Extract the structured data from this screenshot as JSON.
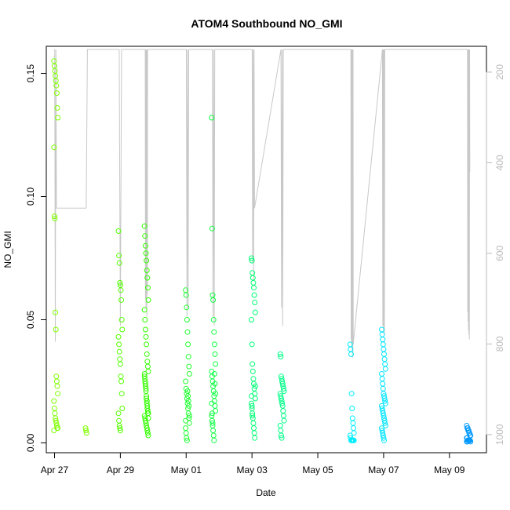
{
  "chart_data": {
    "type": "scatter",
    "title": "ATOM4 Southbound NO_GMI",
    "xlabel": "Date",
    "ylabel": "NO_GMI",
    "x_unit": "date",
    "xlim": [
      "2020-04-26T18:00",
      "2020-05-10T03:00"
    ],
    "ylim": [
      -0.004,
      0.161
    ],
    "x_ticks": [
      {
        "date": "2020-04-27",
        "label": "Apr 27"
      },
      {
        "date": "2020-04-29",
        "label": "Apr 29"
      },
      {
        "date": "2020-05-01",
        "label": "May 01"
      },
      {
        "date": "2020-05-03",
        "label": "May 03"
      },
      {
        "date": "2020-05-05",
        "label": "May 05"
      },
      {
        "date": "2020-05-07",
        "label": "May 07"
      },
      {
        "date": "2020-05-09",
        "label": "May 09"
      }
    ],
    "y_ticks": [
      {
        "value": 0.0,
        "label": "0.00"
      },
      {
        "value": 0.05,
        "label": "0.05"
      },
      {
        "value": 0.1,
        "label": "0.10"
      },
      {
        "value": 0.15,
        "label": "0.15"
      }
    ],
    "y2_ticks": [
      {
        "value": 200,
        "label": "200"
      },
      {
        "value": 400,
        "label": "400"
      },
      {
        "value": 600,
        "label": "600"
      },
      {
        "value": 800,
        "label": "800"
      },
      {
        "value": 1000,
        "label": "1000"
      }
    ],
    "y2lim": [
      1040,
      143
    ],
    "clusters": [
      {
        "date": "2020-04-27T01:00",
        "color": "#7fff00",
        "values": [
          0.155,
          0.153,
          0.151,
          0.149,
          0.147,
          0.145,
          0.142,
          0.136,
          0.132,
          0.12,
          0.092,
          0.091,
          0.053,
          0.046,
          0.027,
          0.025,
          0.023,
          0.02,
          0.017,
          0.014,
          0.012,
          0.01,
          0.009,
          0.008,
          0.007,
          0.006,
          0.006,
          0.005
        ]
      },
      {
        "date": "2020-04-28T00:00",
        "color": "#7fff00",
        "values": [
          0.006,
          0.005,
          0.004
        ]
      },
      {
        "date": "2020-04-29T00:00",
        "color": "#55ff00",
        "values": [
          0.086,
          0.076,
          0.073,
          0.065,
          0.064,
          0.062,
          0.058,
          0.05,
          0.046,
          0.043,
          0.04,
          0.037,
          0.034,
          0.032,
          0.027,
          0.025,
          0.02,
          0.014,
          0.012,
          0.009,
          0.007,
          0.006,
          0.005
        ]
      },
      {
        "date": "2020-04-29T19:00",
        "color": "#33ff00",
        "values": [
          0.088,
          0.084,
          0.08,
          0.077,
          0.074,
          0.07,
          0.067,
          0.063,
          0.058,
          0.054,
          0.05,
          0.046,
          0.043,
          0.04,
          0.036,
          0.033,
          0.031,
          0.029,
          0.027,
          0.025,
          0.023,
          0.021,
          0.019,
          0.017,
          0.015,
          0.013,
          0.012,
          0.011,
          0.01,
          0.009,
          0.008,
          0.007,
          0.006,
          0.005,
          0.004,
          0.003,
          0.028,
          0.026,
          0.024,
          0.022,
          0.018,
          0.016,
          0.014,
          0.012,
          0.01
        ]
      },
      {
        "date": "2020-05-01T01:00",
        "color": "#22ff33",
        "values": [
          0.062,
          0.06,
          0.055,
          0.05,
          0.045,
          0.04,
          0.035,
          0.031,
          0.028,
          0.025,
          0.022,
          0.02,
          0.018,
          0.016,
          0.014,
          0.012,
          0.01,
          0.008,
          0.006,
          0.004,
          0.002,
          0.001,
          0.021,
          0.019,
          0.017,
          0.015,
          0.011,
          0.009
        ]
      },
      {
        "date": "2020-05-01T20:00",
        "color": "#11ff44",
        "values": [
          0.132,
          0.087,
          0.06,
          0.058,
          0.05,
          0.045,
          0.04,
          0.036,
          0.032,
          0.029,
          0.027,
          0.025,
          0.023,
          0.021,
          0.019,
          0.017,
          0.015,
          0.013,
          0.011,
          0.009,
          0.007,
          0.005,
          0.003,
          0.001,
          0.028,
          0.024,
          0.02,
          0.016,
          0.012,
          0.008
        ]
      },
      {
        "date": "2020-05-03T01:00",
        "color": "#00ff77",
        "values": [
          0.075,
          0.074,
          0.069,
          0.067,
          0.065,
          0.063,
          0.06,
          0.057,
          0.053,
          0.05,
          0.04,
          0.032,
          0.029,
          0.026,
          0.024,
          0.022,
          0.02,
          0.018,
          0.016,
          0.014,
          0.012,
          0.01,
          0.008,
          0.006,
          0.004,
          0.002,
          0.023,
          0.019,
          0.015,
          0.011
        ]
      },
      {
        "date": "2020-05-03T22:00",
        "color": "#00ff88",
        "values": [
          0.036,
          0.035,
          0.027,
          0.026,
          0.025,
          0.024,
          0.023,
          0.022,
          0.021,
          0.02,
          0.019,
          0.018,
          0.017,
          0.016,
          0.015,
          0.013,
          0.011,
          0.009,
          0.007,
          0.005,
          0.003,
          0.002
        ]
      },
      {
        "date": "2020-05-06T01:00",
        "color": "#00eeff",
        "values": [
          0.04,
          0.038,
          0.036,
          0.02,
          0.014,
          0.01,
          0.008,
          0.006,
          0.004,
          0.003,
          0.002,
          0.001,
          0.001,
          0.001,
          0.001,
          0.001,
          0.001,
          0.001
        ]
      },
      {
        "date": "2020-05-07T00:00",
        "color": "#00e5ff",
        "values": [
          0.046,
          0.044,
          0.042,
          0.04,
          0.038,
          0.036,
          0.034,
          0.032,
          0.03,
          0.028,
          0.026,
          0.024,
          0.022,
          0.02,
          0.019,
          0.018,
          0.017,
          0.016,
          0.015,
          0.014,
          0.013,
          0.012,
          0.011,
          0.01,
          0.009,
          0.008,
          0.007,
          0.006,
          0.005,
          0.004,
          0.003,
          0.002,
          0.001
        ]
      },
      {
        "date": "2020-05-09T14:00",
        "color": "#0099ff",
        "values": [
          0.007,
          0.006,
          0.006,
          0.005,
          0.005,
          0.004,
          0.004,
          0.003,
          0.003,
          0.002,
          0.002,
          0.001,
          0.001,
          0.001,
          0.001,
          0.001,
          0.001,
          0.0005,
          0.0005,
          0.0005
        ]
      }
    ],
    "pressure_profiles": [
      {
        "date": "2020-04-27T01:00",
        "values": [
          150,
          795,
          150,
          500,
          500
        ]
      },
      {
        "date": "2020-04-28T00:00",
        "values": [
          500,
          150,
          150
        ]
      },
      {
        "date": "2020-04-29T00:00",
        "values": [
          150,
          760,
          150
        ]
      },
      {
        "date": "2020-04-29T19:00",
        "values": [
          150,
          700,
          150,
          720,
          150,
          680,
          150,
          740,
          150,
          690,
          150
        ]
      },
      {
        "date": "2020-05-01T01:00",
        "values": [
          150,
          740,
          150,
          720,
          150
        ]
      },
      {
        "date": "2020-05-01T20:00",
        "values": [
          150,
          740,
          150,
          760,
          150
        ]
      },
      {
        "date": "2020-05-03T01:00",
        "values": [
          150,
          620,
          150,
          660,
          150,
          500
        ]
      },
      {
        "date": "2020-05-03T22:00",
        "values": [
          150,
          720,
          150,
          760,
          150
        ]
      },
      {
        "date": "2020-05-06T01:00",
        "values": [
          150,
          790,
          150,
          800,
          150,
          810,
          150,
          820,
          150,
          830,
          150,
          800
        ]
      },
      {
        "date": "2020-05-07T00:00",
        "values": [
          150,
          760,
          150,
          770,
          150,
          780,
          150
        ]
      },
      {
        "date": "2020-05-09T14:00",
        "values": [
          150,
          730,
          150,
          750,
          150,
          770,
          150,
          780,
          150,
          790,
          150,
          420
        ]
      }
    ]
  }
}
